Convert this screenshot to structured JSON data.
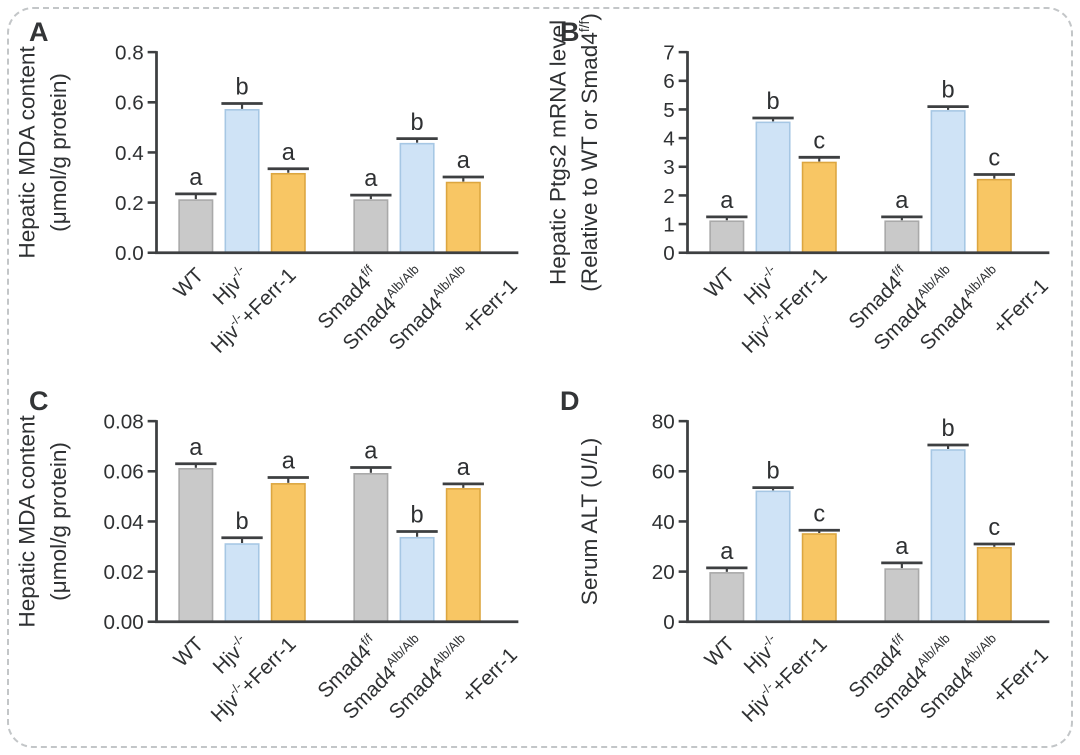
{
  "figure": {
    "background": "#ffffff",
    "border_color": "#c3c6c8",
    "text_color": "#2f3133",
    "axis_color": "#3d3f41",
    "panels": [
      {
        "letter": "A"
      },
      {
        "letter": "B"
      },
      {
        "letter": "C"
      },
      {
        "letter": "D"
      }
    ],
    "colors": {
      "gray_fill": "#c9c9c9",
      "gray_stroke": "#a9a9a9",
      "blue_fill": "#cfe3f6",
      "blue_stroke": "#a6c7e4",
      "orange_fill": "#f8c664",
      "orange_stroke": "#dca640"
    }
  },
  "category_labels_rich": [
    {
      "lines": [
        [
          {
            "t": "WT"
          }
        ]
      ]
    },
    {
      "lines": [
        [
          {
            "t": "Hjv"
          },
          {
            "t": "-/-",
            "sup": true
          }
        ]
      ]
    },
    {
      "lines": [
        [
          {
            "t": "Hjv"
          },
          {
            "t": "-/-",
            "sup": true
          },
          {
            "t": "+Ferr-1"
          }
        ]
      ]
    },
    {
      "lines": [
        [
          {
            "t": "Smad4"
          },
          {
            "t": "f/f",
            "sup": true
          }
        ]
      ]
    },
    {
      "lines": [
        [
          {
            "t": "Smad4"
          },
          {
            "t": "Alb/Alb",
            "sup": true
          }
        ]
      ]
    },
    {
      "lines": [
        [
          {
            "t": "Smad4"
          },
          {
            "t": "Alb/Alb",
            "sup": true
          }
        ],
        [
          {
            "t": "+Ferr-1"
          }
        ]
      ]
    }
  ],
  "chart_data": [
    {
      "type": "bar",
      "panel": "A",
      "title": "",
      "ylabel": "Hepatic MDA content (μmol/g protein)",
      "ylabel_lines": [
        [
          {
            "t": "Hepatic MDA content"
          }
        ],
        [
          {
            "t": "(μmol/g protein)"
          }
        ]
      ],
      "ylim": [
        0,
        0.8
      ],
      "yticks": [
        {
          "label": "0.0",
          "value": 0.0
        },
        {
          "label": "0.2",
          "value": 0.2
        },
        {
          "label": "0.4",
          "value": 0.4
        },
        {
          "label": "0.6",
          "value": 0.6
        },
        {
          "label": "0.8",
          "value": 0.8
        }
      ],
      "categories": [
        "WT",
        "Hjv-/-",
        "Hjv-/-+Ferr-1",
        "Smad4f/f",
        "Smad4Alb/Alb",
        "Smad4Alb/Alb +Ferr-1"
      ],
      "values": [
        0.21,
        0.57,
        0.315,
        0.21,
        0.435,
        0.28
      ],
      "errors": [
        0.025,
        0.025,
        0.02,
        0.02,
        0.02,
        0.022
      ],
      "sig_letters": [
        "a",
        "b",
        "a",
        "a",
        "b",
        "a"
      ],
      "bar_colors": [
        "gray",
        "blue",
        "orange",
        "gray",
        "blue",
        "orange"
      ],
      "grid": "off",
      "legend": "none"
    },
    {
      "type": "bar",
      "panel": "B",
      "title": "",
      "ylabel": "Hepatic Ptgs2 mRNA level (Relative to WT or Smad4f/f)",
      "ylabel_lines": [
        [
          {
            "t": "Hepatic Ptgs2 mRNA level"
          }
        ],
        [
          {
            "t": "(Relative to WT or Smad4"
          },
          {
            "t": "f/f",
            "sup": true
          },
          {
            "t": ")"
          }
        ]
      ],
      "ylim": [
        0,
        7
      ],
      "yticks": [
        {
          "label": "0",
          "value": 0
        },
        {
          "label": "1",
          "value": 1
        },
        {
          "label": "2",
          "value": 2
        },
        {
          "label": "3",
          "value": 3
        },
        {
          "label": "4",
          "value": 4
        },
        {
          "label": "5",
          "value": 5
        },
        {
          "label": "6",
          "value": 6
        },
        {
          "label": "7",
          "value": 7
        }
      ],
      "categories": [
        "WT",
        "Hjv-/-",
        "Hjv-/-+Ferr-1",
        "Smad4f/f",
        "Smad4Alb/Alb",
        "Smad4Alb/Alb +Ferr-1"
      ],
      "values": [
        1.1,
        4.55,
        3.15,
        1.1,
        4.95,
        2.55
      ],
      "errors": [
        0.15,
        0.15,
        0.18,
        0.15,
        0.15,
        0.18
      ],
      "sig_letters": [
        "a",
        "b",
        "c",
        "a",
        "b",
        "c"
      ],
      "bar_colors": [
        "gray",
        "blue",
        "orange",
        "gray",
        "blue",
        "orange"
      ],
      "grid": "off",
      "legend": "none"
    },
    {
      "type": "bar",
      "panel": "C",
      "title": "",
      "ylabel": "Hepatic MDA content (μmol/g protein)",
      "ylabel_lines": [
        [
          {
            "t": "Hepatic MDA content"
          }
        ],
        [
          {
            "t": "(μmol/g protein)"
          }
        ]
      ],
      "ylim": [
        0,
        0.08
      ],
      "yticks": [
        {
          "label": "0.00",
          "value": 0.0
        },
        {
          "label": "0.02",
          "value": 0.02
        },
        {
          "label": "0.04",
          "value": 0.04
        },
        {
          "label": "0.06",
          "value": 0.06
        },
        {
          "label": "0.08",
          "value": 0.08
        }
      ],
      "categories": [
        "WT",
        "Hjv-/-",
        "Hjv-/-+Ferr-1",
        "Smad4f/f",
        "Smad4Alb/Alb",
        "Smad4Alb/Alb +Ferr-1"
      ],
      "values": [
        0.061,
        0.031,
        0.055,
        0.059,
        0.0335,
        0.053
      ],
      "errors": [
        0.002,
        0.0025,
        0.0025,
        0.0025,
        0.0025,
        0.002
      ],
      "sig_letters": [
        "a",
        "b",
        "a",
        "a",
        "b",
        "a"
      ],
      "bar_colors": [
        "gray",
        "blue",
        "orange",
        "gray",
        "blue",
        "orange"
      ],
      "grid": "off",
      "legend": "none"
    },
    {
      "type": "bar",
      "panel": "D",
      "title": "",
      "ylabel": "Serum ALT (U/L)",
      "ylabel_lines": [
        [
          {
            "t": "Serum ALT (U/L)"
          }
        ]
      ],
      "ylim": [
        0,
        80
      ],
      "yticks": [
        {
          "label": "0",
          "value": 0
        },
        {
          "label": "20",
          "value": 20
        },
        {
          "label": "40",
          "value": 40
        },
        {
          "label": "60",
          "value": 60
        },
        {
          "label": "80",
          "value": 80
        }
      ],
      "categories": [
        "WT",
        "Hjv-/-",
        "Hjv-/-+Ferr-1",
        "Smad4f/f",
        "Smad4Alb/Alb",
        "Smad4Alb/Alb +Ferr-1"
      ],
      "values": [
        19.5,
        52,
        35,
        21,
        68.5,
        29.5
      ],
      "errors": [
        2,
        1.5,
        1.5,
        2.5,
        2,
        1.5
      ],
      "sig_letters": [
        "a",
        "b",
        "c",
        "a",
        "b",
        "c"
      ],
      "bar_colors": [
        "gray",
        "blue",
        "orange",
        "gray",
        "blue",
        "orange"
      ],
      "grid": "off",
      "legend": "none"
    }
  ]
}
